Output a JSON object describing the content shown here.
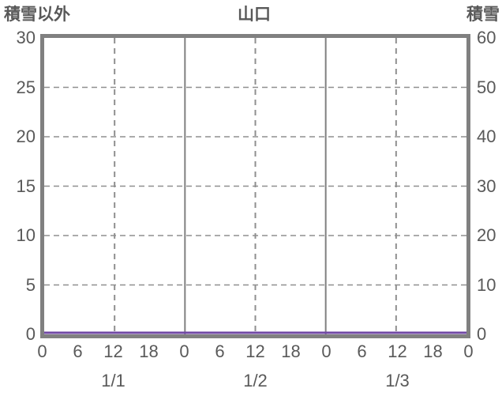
{
  "header": {
    "left_axis_title": "積雪以外",
    "chart_title": "山口",
    "right_axis_title": "積雪"
  },
  "chart_data": {
    "type": "line",
    "title": "山口",
    "left_axis": {
      "title": "積雪以外",
      "min": 0,
      "max": 30,
      "ticks": [
        "30",
        "25",
        "20",
        "15",
        "10",
        "5",
        "0"
      ],
      "tick_values": [
        30,
        25,
        20,
        15,
        10,
        5,
        0
      ]
    },
    "right_axis": {
      "title": "積雪",
      "min": 0,
      "max": 60,
      "ticks": [
        "60",
        "50",
        "40",
        "30",
        "20",
        "10",
        "0"
      ],
      "tick_values": [
        60,
        50,
        40,
        30,
        20,
        10,
        0
      ]
    },
    "x_axis": {
      "total_hours": 72,
      "tick_step_hours": 6,
      "hour_tick_labels": [
        "0",
        "6",
        "12",
        "18",
        "0",
        "6",
        "12",
        "18",
        "0",
        "6",
        "12",
        "18",
        "0"
      ],
      "date_labels": [
        "1/1",
        "1/2",
        "1/3"
      ]
    },
    "grid": {
      "horizontal": "dashed",
      "vertical_midday": "dashed",
      "vertical_day_boundary": "solid"
    },
    "series": [
      {
        "name": "積雪以外",
        "axis": "left",
        "x_hours": [
          0,
          6,
          12,
          18,
          24,
          30,
          36,
          42,
          48,
          54,
          60,
          66,
          72
        ],
        "values": [
          0,
          0,
          0,
          0,
          0,
          0,
          0,
          0,
          0,
          0,
          0,
          0,
          0
        ],
        "color": "#7149A5"
      },
      {
        "name": "積雪",
        "axis": "right",
        "x_hours": [
          0,
          6,
          12,
          18,
          24,
          30,
          36,
          42,
          48,
          54,
          60,
          66,
          72
        ],
        "values": [
          0,
          0,
          0,
          0,
          0,
          0,
          0,
          0,
          0,
          0,
          0,
          0,
          0
        ],
        "color": "#7149A5"
      }
    ],
    "colors": {
      "background": "#ffffff",
      "border": "#808080",
      "grid": "#8f8f8f",
      "text": "#595959",
      "series": "#7149A5"
    }
  }
}
